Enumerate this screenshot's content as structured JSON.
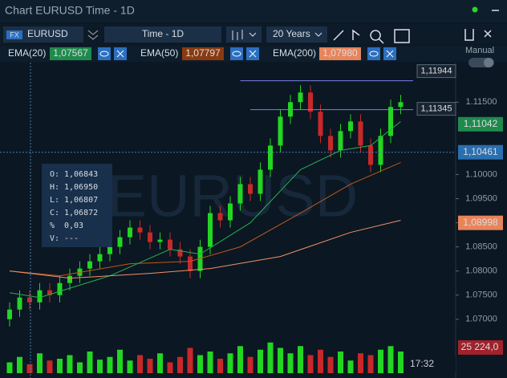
{
  "window": {
    "title": "Chart EURUSD Time - 1D"
  },
  "toolbar": {
    "badge": "FX",
    "symbol": "EURUSD",
    "timeframe": "Time - 1D",
    "range": "20 Years"
  },
  "indicators": [
    {
      "name": "EMA(20)",
      "value": "1,07567",
      "color": "#1f8a4c"
    },
    {
      "name": "EMA(50)",
      "value": "1,07797",
      "color": "#8a3a10"
    },
    {
      "name": "EMA(200)",
      "value": "1,07980",
      "color": "#e8845a"
    }
  ],
  "manual": "Manual",
  "info": [
    {
      "label": "O:",
      "value": "1,06843"
    },
    {
      "label": "H:",
      "value": "1,06950"
    },
    {
      "label": "L:",
      "value": "1,06807"
    },
    {
      "label": "C:",
      "value": "1,06872"
    },
    {
      "label": "%",
      "value": "0,03"
    },
    {
      "label": "V:",
      "value": "---"
    }
  ],
  "chart_data": {
    "type": "candlestick",
    "watermark": "EURUSD",
    "time_label": "17:32",
    "volume_label": "25 224,0",
    "ylim": [
      1.0663,
      1.1232
    ],
    "yticks": [
      {
        "value": 1.115,
        "label": "1.11500"
      },
      {
        "value": 1.1,
        "label": "1.10000"
      },
      {
        "value": 1.095,
        "label": "1.09500"
      },
      {
        "value": 1.09,
        "label": "1.09000"
      },
      {
        "value": 1.085,
        "label": "1.08500"
      },
      {
        "value": 1.08,
        "label": "1.08000"
      },
      {
        "value": 1.075,
        "label": "1.07500"
      },
      {
        "value": 1.07,
        "label": "1.07000"
      }
    ],
    "up_color": "#22d622",
    "down_color": "#c8282a",
    "open": [
      1.07,
      1.072,
      1.0745,
      1.0735,
      1.076,
      1.075,
      1.0775,
      1.079,
      1.0805,
      1.082,
      1.0835,
      1.085,
      1.087,
      1.089,
      1.088,
      1.086,
      1.0865,
      1.0845,
      1.083,
      1.08,
      1.085,
      1.092,
      1.0905,
      1.094,
      1.098,
      1.096,
      1.101,
      1.106,
      1.112,
      1.115,
      1.117,
      1.113,
      1.108,
      1.105,
      1.109,
      1.111,
      1.106,
      1.102,
      1.108,
      1.114
    ],
    "high": [
      1.0735,
      1.076,
      1.076,
      1.0775,
      1.0775,
      1.079,
      1.0805,
      1.082,
      1.0835,
      1.085,
      1.0865,
      1.0885,
      1.0905,
      1.0905,
      1.0895,
      1.088,
      1.088,
      1.086,
      1.0845,
      1.0865,
      1.0935,
      1.0935,
      1.0955,
      1.0995,
      1.0995,
      1.1025,
      1.1075,
      1.1135,
      1.1165,
      1.1185,
      1.1185,
      1.1145,
      1.1095,
      1.1105,
      1.1125,
      1.1125,
      1.1075,
      1.1095,
      1.1155,
      1.1165
    ],
    "low": [
      1.0685,
      1.0705,
      1.072,
      1.072,
      1.0735,
      1.0735,
      1.076,
      1.0775,
      1.079,
      1.0805,
      1.082,
      1.0835,
      1.0855,
      1.0865,
      1.0845,
      1.0845,
      1.083,
      1.0815,
      1.0785,
      1.0785,
      1.0835,
      1.089,
      1.089,
      1.0925,
      1.0945,
      1.0945,
      1.0995,
      1.1045,
      1.1105,
      1.1135,
      1.1115,
      1.1065,
      1.1035,
      1.1035,
      1.1075,
      1.1045,
      1.1005,
      1.1005,
      1.1065,
      1.1125
    ],
    "close": [
      1.072,
      1.0745,
      1.0735,
      1.076,
      1.075,
      1.0775,
      1.079,
      1.0805,
      1.082,
      1.0835,
      1.085,
      1.087,
      1.089,
      1.088,
      1.086,
      1.0865,
      1.0845,
      1.083,
      1.08,
      1.085,
      1.092,
      1.0905,
      1.094,
      1.098,
      1.096,
      1.101,
      1.106,
      1.112,
      1.115,
      1.117,
      1.113,
      1.108,
      1.105,
      1.109,
      1.111,
      1.106,
      1.102,
      1.108,
      1.114,
      1.115
    ],
    "volume": [
      12,
      18,
      10,
      22,
      14,
      16,
      20,
      12,
      24,
      15,
      18,
      26,
      14,
      20,
      16,
      22,
      12,
      18,
      28,
      20,
      24,
      16,
      22,
      30,
      18,
      26,
      34,
      28,
      22,
      30,
      20,
      26,
      18,
      24,
      14,
      22,
      20,
      26,
      30,
      24
    ],
    "vlim": [
      0,
      40
    ],
    "ema_lines": [
      {
        "name": "EMA(20)",
        "color": "#27b04f",
        "x": [
          0,
          3,
          10,
          16,
          19,
          24,
          29,
          33,
          36,
          39
        ],
        "values": [
          1.0755,
          1.0745,
          1.079,
          1.0845,
          1.0835,
          1.09,
          1.101,
          1.105,
          1.106,
          1.111
        ]
      },
      {
        "name": "EMA(50)",
        "color": "#c0581c",
        "x": [
          0,
          5,
          12,
          18,
          23,
          29,
          34,
          39
        ],
        "values": [
          1.08,
          1.079,
          1.0815,
          1.082,
          1.085,
          1.092,
          1.098,
          1.1025
        ]
      },
      {
        "name": "EMA(200)",
        "color": "#f0906a",
        "x": [
          0,
          6,
          14,
          20,
          27,
          34,
          39
        ],
        "values": [
          1.08,
          1.0785,
          1.0795,
          1.0805,
          1.083,
          1.088,
          1.0905
        ]
      }
    ],
    "hlines": [
      {
        "value": 1.11944,
        "label": "1,11944",
        "from": 23
      },
      {
        "value": 1.11345,
        "label": "1,11345",
        "from": 24
      }
    ],
    "price_labels": [
      {
        "value": 1.11042,
        "label": "1,11042",
        "color": "#1f8a4c"
      },
      {
        "value": 1.10461,
        "label": "1,10461",
        "color": "#2a6fb0"
      },
      {
        "value": 1.08998,
        "label": "1,08998",
        "color": "#e8845a"
      }
    ]
  }
}
